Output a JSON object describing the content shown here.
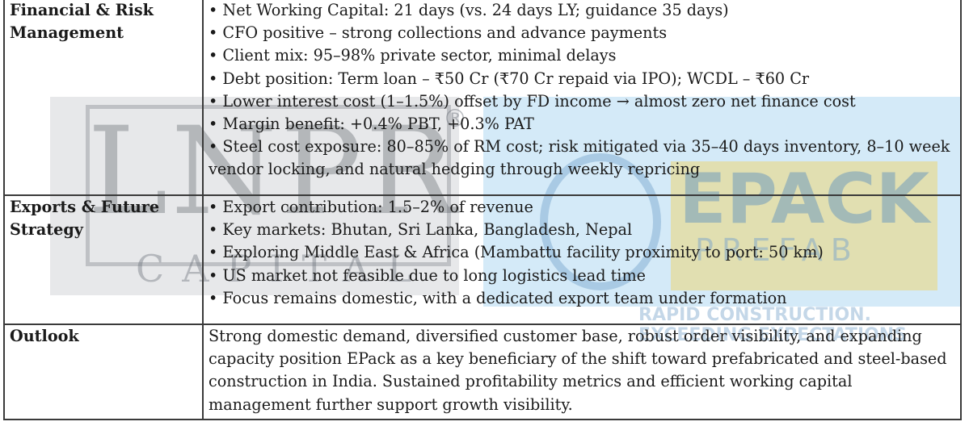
{
  "watermarks": {
    "lnpr": {
      "mark": "LNPR",
      "registered": "®",
      "sub": "CAPITAL"
    },
    "epack": {
      "name": "EPACK",
      "sub": "PREFAB",
      "tagline": "RAPID CONSTRUCTION. EXCEEDING EXPECTATIONS"
    }
  },
  "rows": [
    {
      "label": "Financial & Risk Management",
      "bullets": [
        "• Net Working Capital: 21 days (vs. 24 days LY; guidance 35 days)",
        "• CFO positive – strong collections and advance payments",
        "• Client mix: 95–98% private sector, minimal delays",
        "• Debt position: Term loan – ₹50 Cr (₹70 Cr repaid via IPO); WCDL – ₹60 Cr",
        "• Lower interest cost (1–1.5%) offset by FD income → almost zero net finance cost",
        "• Margin benefit: +0.4% PBT, +0.3% PAT",
        "• Steel cost exposure: 80–85% of RM cost; risk mitigated via 35–40 days inventory, 8–10 week vendor locking, and natural hedging through weekly repricing"
      ]
    },
    {
      "label": "Exports & Future Strategy",
      "bullets": [
        "• Export contribution: 1.5–2% of revenue",
        "• Key markets: Bhutan, Sri Lanka, Bangladesh, Nepal",
        "• Exploring Middle East & Africa (Mambattu facility proximity to port: 50 km)",
        "• US market not feasible due to long logistics lead time",
        "• Focus remains domestic, with a dedicated export team under formation"
      ]
    },
    {
      "label": "Outlook",
      "paragraph": "Strong domestic demand, diversified customer base, robust order visibility, and expanding capacity position EPack as a key beneficiary of the shift toward prefabricated and steel-based construction in India. Sustained profitability metrics and efficient working capital management further support growth visibility."
    }
  ]
}
